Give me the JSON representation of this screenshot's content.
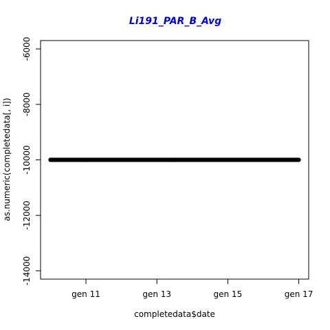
{
  "chart_data": {
    "type": "scatter",
    "title": "Li191_PAR_B_Avg",
    "title_color": "#0000cc",
    "xlabel": "completedata$date",
    "ylabel": "as.numeric(completedata[, i])",
    "x_ticks": [
      "gen 11",
      "gen 13",
      "gen 15",
      "gen 17"
    ],
    "x_tick_dates": [
      "2017-01-11",
      "2017-01-13",
      "2017-01-15",
      "2017-01-17"
    ],
    "xlim": [
      "2017-01-10",
      "2017-01-17"
    ],
    "y_ticks": [
      -6000,
      -8000,
      -10000,
      -12000,
      -14000
    ],
    "ylim": [
      -14300,
      -5700
    ],
    "grid": false,
    "series": [
      {
        "marker": "open-circle",
        "color": "#000000",
        "x_start": "2017-01-10",
        "x_end": "2017-01-17",
        "y": -10000
      }
    ]
  }
}
